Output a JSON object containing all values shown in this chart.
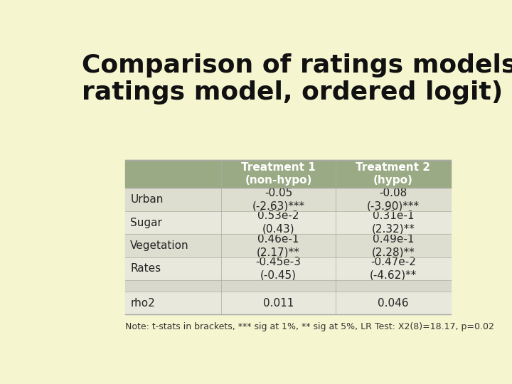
{
  "title": "Comparison of ratings models (full\nratings model, ordered logit)",
  "background_color": "#f5f5d0",
  "header_bg": "#9aaa84",
  "header_text_color": "#ffffff",
  "row_bg_even": "#ddddd0",
  "row_bg_odd": "#e8e8dc",
  "empty_row_bg": "#d8d8cc",
  "col_headers": [
    "Treatment 1\n(non-hypo)",
    "Treatment 2\n(hypo)"
  ],
  "rows": [
    {
      "label": "Urban",
      "t1": "-0.05\n(-2.63)***",
      "t2": "-0.08\n(-3.90)***"
    },
    {
      "label": "Sugar",
      "t1": "0.53e-2\n(0.43)",
      "t2": "0.31e-1\n(2.32)**"
    },
    {
      "label": "Vegetation",
      "t1": "0.46e-1\n(2.17)**",
      "t2": "0.49e-1\n(2.28)**"
    },
    {
      "label": "Rates",
      "t1": "-0.45e-3\n(-0.45)",
      "t2": "-0.47e-2\n(-4.62)**"
    },
    {
      "label": "",
      "t1": "",
      "t2": ""
    },
    {
      "label": "rho2",
      "t1": "0.011",
      "t2": "0.046"
    }
  ],
  "note": "Note: t-stats in brackets, *** sig at 1%, ** sig at 5%, LR Test: X2(8)=18.17, p=0.02",
  "title_fontsize": 26,
  "header_fontsize": 11,
  "cell_fontsize": 11,
  "note_fontsize": 9,
  "label_fontsize": 11
}
